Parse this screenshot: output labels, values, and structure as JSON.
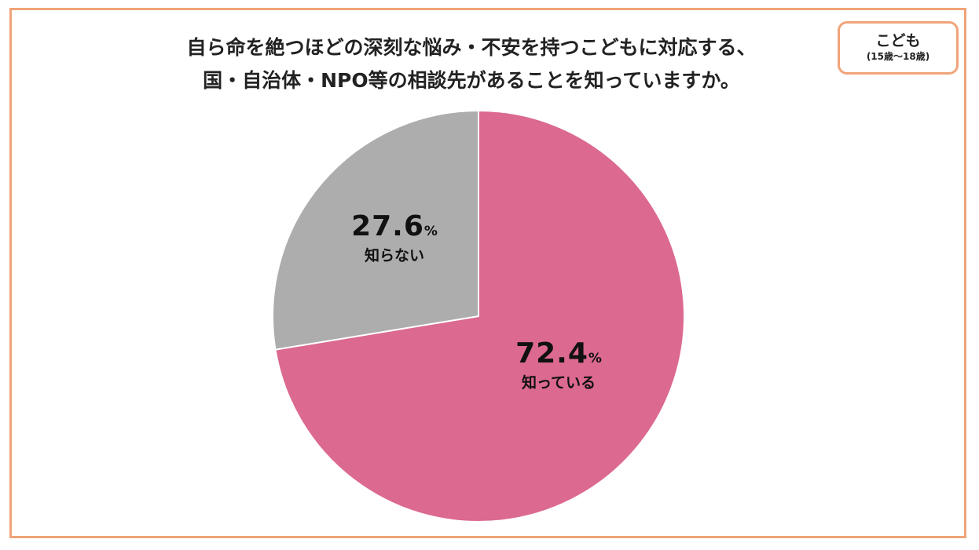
{
  "title_line1": "自ら命を絶つほどの深刻な悩み・不安を持つこどもに対応する、",
  "title_line2": "国・自治体・NPO等の相談先があることを知っていますか。",
  "badge": {
    "label": "こども",
    "sublabel": "(15歳〜18歳)"
  },
  "colors": {
    "frame": "#f0a479",
    "know": "#dc698f",
    "dont_know": "#adadad"
  },
  "chart_data": {
    "type": "pie",
    "slices": [
      {
        "label": "知っている",
        "value": 72.4,
        "value_text": "72.4",
        "color": "#dc698f"
      },
      {
        "label": "知らない",
        "value": 27.6,
        "value_text": "27.6",
        "color": "#adadad"
      }
    ],
    "unit": "%",
    "start": "12 o'clock",
    "direction": "clockwise"
  }
}
